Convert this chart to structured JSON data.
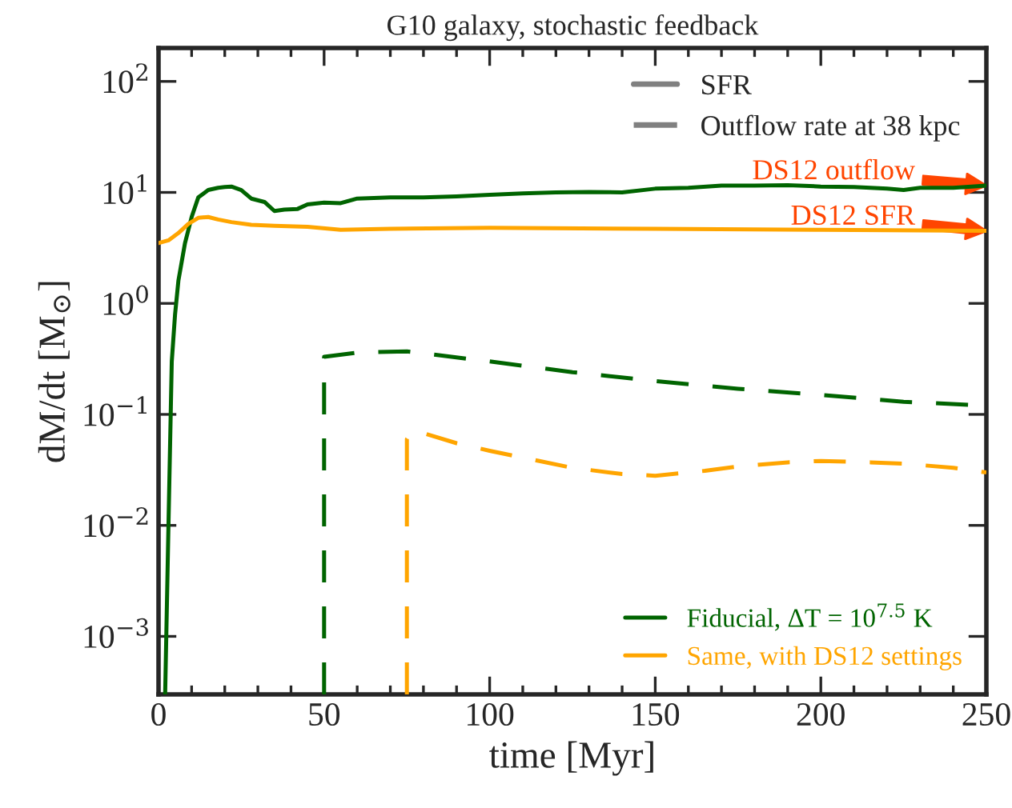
{
  "chart_data": {
    "type": "line",
    "title": "G10 galaxy, stochastic feedback",
    "xlabel": "time [Myr]",
    "ylabel": "dM/dt [M$_{⊙}$]",
    "log": "y",
    "xlim": [
      0,
      250
    ],
    "ylim": [
      0.0003,
      200
    ],
    "xticks": [
      0,
      50,
      100,
      150,
      200,
      250
    ],
    "yticks": [
      {
        "value": 0.001,
        "label": "10$^{−3}$"
      },
      {
        "value": 0.01,
        "label": "10$^{−2}$"
      },
      {
        "value": 0.1,
        "label": "10$^{−1}$"
      },
      {
        "value": 1,
        "label": "10$^{0}$"
      },
      {
        "value": 10,
        "label": "10$^{1}$"
      },
      {
        "value": 100,
        "label": "10$^{2}$"
      }
    ],
    "grid": false,
    "legend": "bottom right",
    "series": [
      {
        "name": "Fiducial, ΔT = 10$^{7.5}$ K",
        "color": "#006400",
        "line_style": "solid",
        "x": [
          2,
          3,
          4,
          5,
          6,
          8,
          10,
          12,
          15,
          18,
          20,
          22,
          25,
          28,
          32,
          35,
          38,
          42,
          45,
          50,
          55,
          60,
          70,
          80,
          90,
          100,
          110,
          120,
          130,
          140,
          150,
          160,
          170,
          180,
          190,
          200,
          210,
          220,
          225,
          230,
          240,
          250
        ],
        "values": [
          0.0003,
          0.01,
          0.3,
          0.8,
          1.6,
          3.5,
          6,
          9,
          10.5,
          11,
          11.2,
          11.3,
          10.5,
          8.8,
          8.2,
          6.8,
          7,
          7.1,
          7.8,
          8.1,
          8,
          8.8,
          9,
          9,
          9.2,
          9.5,
          9.8,
          10,
          10.1,
          10,
          10.8,
          11,
          11.5,
          11.5,
          11.6,
          11.3,
          11.2,
          10.8,
          10.5,
          11,
          11,
          11.5
        ]
      },
      {
        "color": "#006400",
        "line_style": "dashed",
        "x": [
          50,
          50,
          60,
          75,
          100,
          125,
          150,
          175,
          200,
          225,
          250
        ],
        "values": [
          0.0003,
          0.33,
          0.36,
          0.37,
          0.3,
          0.24,
          0.2,
          0.17,
          0.15,
          0.13,
          0.12
        ]
      },
      {
        "name": "Same, with DS12 settings",
        "color": "#ffa500",
        "line_style": "solid",
        "x": [
          0,
          3,
          6,
          9,
          12,
          15,
          18,
          22,
          28,
          35,
          45,
          55,
          70,
          100,
          150,
          200,
          250
        ],
        "values": [
          3.5,
          3.7,
          4.3,
          5.2,
          5.9,
          6,
          5.7,
          5.4,
          5.1,
          5,
          4.9,
          4.6,
          4.7,
          4.8,
          4.7,
          4.6,
          4.5
        ]
      },
      {
        "color": "#ffa500",
        "line_style": "dashed",
        "x": [
          75,
          75,
          77,
          90,
          100,
          115,
          125,
          140,
          150,
          165,
          175,
          190,
          200,
          215,
          225,
          240,
          250
        ],
        "values": [
          0.0003,
          0.06,
          0.072,
          0.055,
          0.047,
          0.038,
          0.033,
          0.029,
          0.028,
          0.031,
          0.034,
          0.037,
          0.038,
          0.037,
          0.036,
          0.033,
          0.03
        ]
      },
      {
        "name": "SFR",
        "color": "#808080",
        "line_style": "solid",
        "values": [
          null
        ]
      },
      {
        "name": "Outflow rate at 38 kpc",
        "color": "#808080",
        "line_style": "dashed",
        "values": [
          null
        ]
      }
    ],
    "annotations": [
      {
        "text": "DS12 outflow",
        "x": 250,
        "y": 11.5
      },
      {
        "text": "DS12 SFR",
        "x": 250,
        "y": 4.5
      }
    ]
  }
}
